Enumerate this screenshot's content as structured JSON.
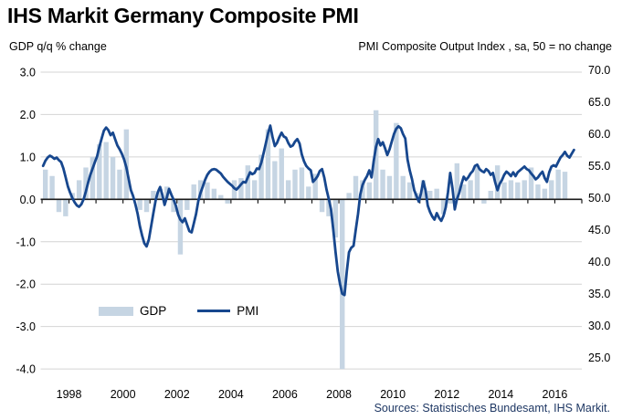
{
  "header": {
    "title": "IHS Markit Germany Composite PMI"
  },
  "axis_titles": {
    "left": "GDP q/q % change",
    "right": "PMI Composite Output Index , sa, 50 = no change"
  },
  "legend": {
    "gdp_label": "GDP",
    "pmi_label": "PMI"
  },
  "source_text": "Sources: Statistisches Bundesamt, IHS Markit.",
  "colors": {
    "bar": "#c6d5e3",
    "line": "#17478e",
    "grid": "#d4d4d4",
    "axis": "#1a1a1a",
    "text": "#000000",
    "source": "#1f3864",
    "background": "#ffffff"
  },
  "chart_data": {
    "type": "combo",
    "title": "IHS Markit Germany Composite PMI",
    "left_axis": {
      "label": "GDP q/q % change",
      "range": [
        -4.0,
        3.0
      ],
      "ticks": [
        3.0,
        2.0,
        1.0,
        0.0,
        -1.0,
        -2.0,
        -3.0,
        -4.0
      ]
    },
    "right_axis": {
      "label": "PMI Composite Output Index , sa, 50 = no change",
      "range": [
        25.0,
        70.0
      ],
      "ticks": [
        70.0,
        65.0,
        60.0,
        55.0,
        50.0,
        45.0,
        40.0,
        35.0,
        30.0,
        25.0
      ]
    },
    "x_axis": {
      "start_year": 1998,
      "end_year": 2018,
      "tick_every_years": 1,
      "label_years": [
        1998,
        2000,
        2002,
        2004,
        2006,
        2008,
        2010,
        2012,
        2014,
        2016
      ]
    },
    "grid": "horizontal-left-axis",
    "legend_position": "inside-lower-left",
    "series": [
      {
        "name": "GDP",
        "type": "bar",
        "axis": "left",
        "freq": "quarterly",
        "start": "1998Q1",
        "values": [
          0.7,
          0.55,
          -0.3,
          -0.4,
          0.15,
          0.45,
          0.75,
          1.0,
          1.3,
          1.35,
          1.0,
          0.7,
          1.65,
          0.0,
          -0.25,
          -0.3,
          0.2,
          0.25,
          0.3,
          -0.3,
          -1.3,
          -0.25,
          0.35,
          0.45,
          0.4,
          0.25,
          0.1,
          -0.1,
          0.45,
          0.5,
          0.8,
          0.45,
          1.05,
          1.65,
          0.9,
          1.2,
          0.45,
          0.7,
          0.75,
          0.3,
          0.6,
          -0.3,
          -0.4,
          -0.9,
          -4.0,
          0.15,
          0.55,
          0.45,
          0.4,
          2.1,
          0.7,
          0.55,
          1.8,
          0.55,
          0.4,
          0.15,
          0.45,
          0.2,
          0.25,
          -0.35,
          -0.1,
          0.85,
          0.35,
          0.45,
          0.8,
          -0.1,
          0.2,
          0.8,
          0.4,
          0.45,
          0.4,
          0.45,
          0.75,
          0.35,
          0.25,
          0.45,
          0.7,
          0.65
        ]
      },
      {
        "name": "PMI",
        "type": "line",
        "axis": "right",
        "freq": "monthly",
        "start": "1998-01",
        "values": [
          55.0,
          55.8,
          56.3,
          56.6,
          56.4,
          56.1,
          56.3,
          55.9,
          55.6,
          54.6,
          53.2,
          51.8,
          50.8,
          50.0,
          49.3,
          48.8,
          48.6,
          49.0,
          49.8,
          51.0,
          52.4,
          53.6,
          54.6,
          55.6,
          56.5,
          58.0,
          59.3,
          60.5,
          61.0,
          60.6,
          59.8,
          60.2,
          59.2,
          58.2,
          57.6,
          56.9,
          56.0,
          54.8,
          53.0,
          51.2,
          50.3,
          49.0,
          47.5,
          45.6,
          44.1,
          42.9,
          42.4,
          43.5,
          45.5,
          47.6,
          49.6,
          50.9,
          51.7,
          50.5,
          48.9,
          50.1,
          51.4,
          50.5,
          49.7,
          48.8,
          47.4,
          46.6,
          46.2,
          46.8,
          45.8,
          44.8,
          44.6,
          46.0,
          47.5,
          49.5,
          50.8,
          51.8,
          52.8,
          53.6,
          54.1,
          54.4,
          54.5,
          54.4,
          54.1,
          53.8,
          53.3,
          52.9,
          52.5,
          52.2,
          51.9,
          51.5,
          51.3,
          51.7,
          52.1,
          52.5,
          52.4,
          53.2,
          54.0,
          53.7,
          53.9,
          54.6,
          54.5,
          55.5,
          57.0,
          58.5,
          60.1,
          61.3,
          59.5,
          58.1,
          58.6,
          59.5,
          60.2,
          59.6,
          59.4,
          58.6,
          58.0,
          58.2,
          58.8,
          59.2,
          58.5,
          56.8,
          55.7,
          55.0,
          54.6,
          54.3,
          52.5,
          52.9,
          53.4,
          54.2,
          54.5,
          53.2,
          51.3,
          49.8,
          48.2,
          45.0,
          41.5,
          38.5,
          36.5,
          35.0,
          34.8,
          38.5,
          41.5,
          42.2,
          42.5,
          45.0,
          47.5,
          50.5,
          52.0,
          52.8,
          53.4,
          54.3,
          53.2,
          55.8,
          58.0,
          59.2,
          58.2,
          58.7,
          57.8,
          56.7,
          57.6,
          58.8,
          60.0,
          60.8,
          61.2,
          60.9,
          60.0,
          59.3,
          56.0,
          54.3,
          52.9,
          51.2,
          50.3,
          49.4,
          50.7,
          52.6,
          51.2,
          48.8,
          47.8,
          47.1,
          46.6,
          47.6,
          46.9,
          46.4,
          47.2,
          48.5,
          50.9,
          53.9,
          51.5,
          48.2,
          49.8,
          50.8,
          52.2,
          53.3,
          52.8,
          53.2,
          53.8,
          54.2,
          55.0,
          55.2,
          54.5,
          54.2,
          54.0,
          54.5,
          54.2,
          53.6,
          53.9,
          52.4,
          51.2,
          52.2,
          52.8,
          53.6,
          54.1,
          53.8,
          53.4,
          54.0,
          53.4,
          54.0,
          54.3,
          54.6,
          54.9,
          54.5,
          54.3,
          53.8,
          53.4,
          52.9,
          53.2,
          53.7,
          54.1,
          53.1,
          52.5,
          54.0,
          54.9,
          55.1,
          54.9,
          55.6,
          56.3,
          56.7,
          57.2,
          56.6,
          56.3,
          56.9,
          57.5
        ]
      }
    ]
  }
}
